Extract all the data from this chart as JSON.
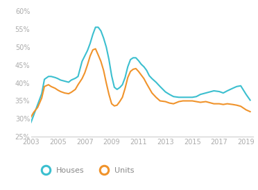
{
  "xlim": [
    2003,
    2019.5
  ],
  "ylim": [
    0.25,
    0.615
  ],
  "yticks": [
    0.25,
    0.3,
    0.35,
    0.4,
    0.45,
    0.5,
    0.55,
    0.6
  ],
  "xticks": [
    2003,
    2005,
    2007,
    2009,
    2011,
    2013,
    2015,
    2017,
    2019
  ],
  "houses_color": "#3bbfcf",
  "units_color": "#f0932b",
  "background_color": "#ffffff",
  "legend_labels": [
    "Houses",
    "Units"
  ],
  "houses_x": [
    2003.0,
    2003.2,
    2003.5,
    2003.8,
    2004.0,
    2004.3,
    2004.5,
    2004.8,
    2005.0,
    2005.2,
    2005.5,
    2005.8,
    2006.0,
    2006.3,
    2006.5,
    2006.8,
    2007.0,
    2007.2,
    2007.4,
    2007.6,
    2007.8,
    2008.0,
    2008.2,
    2008.4,
    2008.6,
    2008.8,
    2009.0,
    2009.2,
    2009.4,
    2009.6,
    2009.8,
    2010.0,
    2010.2,
    2010.4,
    2010.6,
    2010.8,
    2011.0,
    2011.2,
    2011.4,
    2011.6,
    2011.8,
    2012.0,
    2012.3,
    2012.6,
    2013.0,
    2013.3,
    2013.6,
    2014.0,
    2014.3,
    2014.6,
    2015.0,
    2015.3,
    2015.6,
    2016.0,
    2016.3,
    2016.6,
    2017.0,
    2017.3,
    2017.6,
    2018.0,
    2018.3,
    2018.6,
    2019.0,
    2019.3
  ],
  "houses_y": [
    0.29,
    0.31,
    0.34,
    0.37,
    0.41,
    0.418,
    0.418,
    0.415,
    0.412,
    0.408,
    0.405,
    0.402,
    0.408,
    0.413,
    0.418,
    0.46,
    0.475,
    0.49,
    0.51,
    0.535,
    0.555,
    0.555,
    0.545,
    0.525,
    0.5,
    0.465,
    0.42,
    0.388,
    0.382,
    0.387,
    0.395,
    0.415,
    0.445,
    0.465,
    0.47,
    0.47,
    0.462,
    0.452,
    0.445,
    0.435,
    0.42,
    0.412,
    0.402,
    0.39,
    0.375,
    0.368,
    0.362,
    0.36,
    0.36,
    0.36,
    0.36,
    0.362,
    0.368,
    0.372,
    0.375,
    0.378,
    0.376,
    0.372,
    0.378,
    0.385,
    0.39,
    0.392,
    0.368,
    0.352
  ],
  "units_x": [
    2003.0,
    2003.2,
    2003.5,
    2003.8,
    2004.0,
    2004.3,
    2004.5,
    2004.8,
    2005.0,
    2005.2,
    2005.5,
    2005.8,
    2006.0,
    2006.3,
    2006.5,
    2006.8,
    2007.0,
    2007.2,
    2007.4,
    2007.6,
    2007.8,
    2008.0,
    2008.2,
    2008.4,
    2008.6,
    2008.8,
    2009.0,
    2009.2,
    2009.4,
    2009.6,
    2009.8,
    2010.0,
    2010.2,
    2010.4,
    2010.6,
    2010.8,
    2011.0,
    2011.2,
    2011.4,
    2011.6,
    2011.8,
    2012.0,
    2012.3,
    2012.6,
    2013.0,
    2013.3,
    2013.6,
    2014.0,
    2014.3,
    2014.6,
    2015.0,
    2015.3,
    2015.6,
    2016.0,
    2016.3,
    2016.6,
    2017.0,
    2017.3,
    2017.6,
    2018.0,
    2018.3,
    2018.6,
    2019.0,
    2019.3
  ],
  "units_y": [
    0.305,
    0.318,
    0.332,
    0.358,
    0.39,
    0.395,
    0.39,
    0.385,
    0.38,
    0.376,
    0.372,
    0.37,
    0.374,
    0.382,
    0.395,
    0.412,
    0.428,
    0.45,
    0.475,
    0.492,
    0.495,
    0.478,
    0.46,
    0.435,
    0.4,
    0.368,
    0.342,
    0.336,
    0.338,
    0.348,
    0.36,
    0.385,
    0.415,
    0.432,
    0.438,
    0.44,
    0.432,
    0.422,
    0.412,
    0.398,
    0.385,
    0.372,
    0.36,
    0.35,
    0.348,
    0.344,
    0.342,
    0.348,
    0.35,
    0.35,
    0.35,
    0.348,
    0.346,
    0.348,
    0.345,
    0.342,
    0.342,
    0.34,
    0.342,
    0.34,
    0.338,
    0.335,
    0.325,
    0.32
  ]
}
